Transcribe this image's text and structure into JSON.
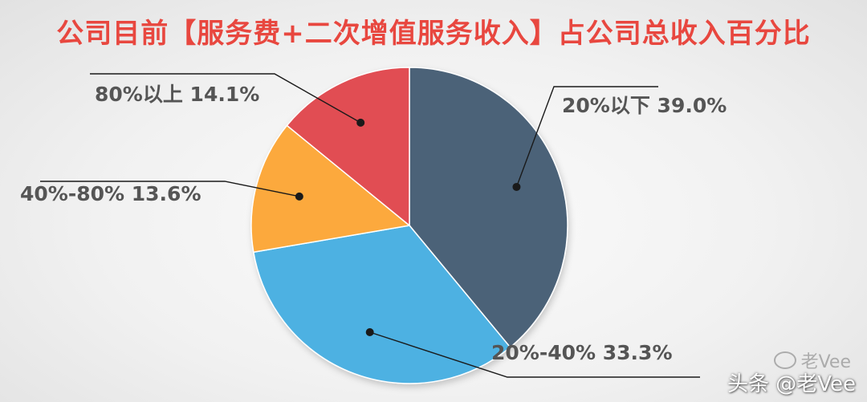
{
  "chart_data": {
    "type": "pie",
    "title": "公司目前【服务费+二次增值服务收入】占公司总收入百分比",
    "slices": [
      {
        "label": "20%以下",
        "value": 39.0,
        "display": "39.0%",
        "color": "#4b6278"
      },
      {
        "label": "20%-40%",
        "value": 33.3,
        "display": "33.3%",
        "color": "#4eb1e2"
      },
      {
        "label": "40%-80%",
        "value": 13.6,
        "display": "13.6%",
        "color": "#fca93c"
      },
      {
        "label": "80%以上",
        "value": 14.1,
        "display": "14.1%",
        "color": "#e14e52"
      }
    ],
    "start": "12 o'clock",
    "direction": "clockwise",
    "legend": "none",
    "label_color": "#555555"
  },
  "watermark": {
    "text": "头条 @老Vee",
    "faint_text": "老Vee"
  }
}
